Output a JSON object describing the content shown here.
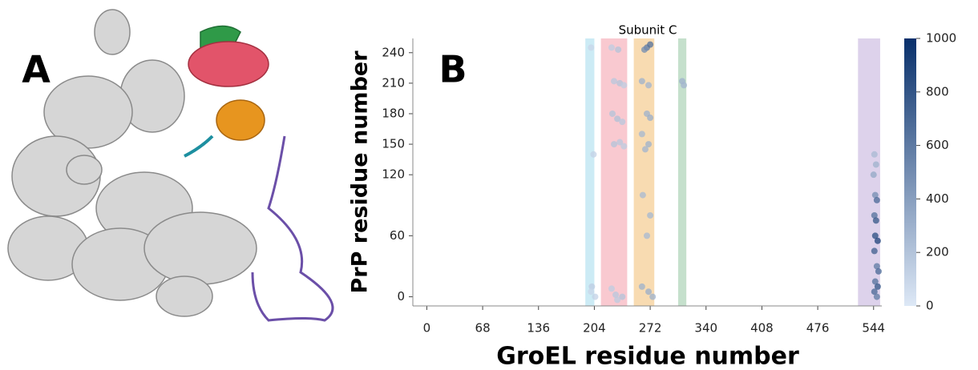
{
  "panel_labels": [
    "A",
    "B"
  ],
  "chart_data": {
    "type": "scatter",
    "title": "Subunit C",
    "x_label": "GroEL residue number",
    "y_label": "PrP residue number",
    "xlim": [
      -17,
      554
    ],
    "ylim": [
      -9,
      254
    ],
    "xticks": [
      0,
      68,
      136,
      204,
      272,
      340,
      408,
      476,
      544
    ],
    "yticks": [
      0,
      60,
      120,
      150,
      180,
      210,
      240
    ],
    "bands": [
      {
        "range": [
          193,
          204
        ],
        "color": "#bfe6f2"
      },
      {
        "range": [
          212,
          244
        ],
        "color": "#f8bcc4"
      },
      {
        "range": [
          252,
          277
        ],
        "color": "#f6d29e"
      },
      {
        "range": [
          306,
          316
        ],
        "color": "#b6d8bf"
      },
      {
        "range": [
          525,
          552
        ],
        "color": "#d5c7e6"
      }
    ],
    "colorbar": {
      "lim": [
        0,
        1000
      ],
      "ticks": [
        0,
        200,
        400,
        600,
        800,
        1000
      ],
      "colors": [
        "#dde8f6",
        "#08306b"
      ]
    },
    "points": {
      "x": [
        200,
        203,
        201,
        205,
        200,
        225,
        233,
        228,
        235,
        240,
        226,
        232,
        238,
        228,
        235,
        240,
        225,
        230,
        238,
        232,
        268,
        272,
        265,
        262,
        270,
        268,
        272,
        262,
        270,
        266,
        263,
        272,
        268,
        262,
        270,
        275,
        311,
        313,
        545,
        547,
        544,
        546,
        548,
        545,
        547,
        546,
        549,
        545,
        548,
        550,
        546,
        549,
        545,
        548
      ],
      "y": [
        245,
        140,
        10,
        0,
        5,
        245,
        243,
        212,
        210,
        208,
        180,
        175,
        172,
        150,
        152,
        148,
        8,
        2,
        0,
        -3,
        245,
        248,
        243,
        212,
        208,
        180,
        176,
        160,
        150,
        145,
        100,
        80,
        60,
        10,
        5,
        0,
        212,
        208,
        140,
        130,
        120,
        100,
        95,
        80,
        75,
        60,
        55,
        45,
        30,
        25,
        15,
        10,
        5,
        0
      ],
      "c": [
        100,
        120,
        150,
        120,
        100,
        150,
        200,
        180,
        200,
        150,
        200,
        220,
        180,
        200,
        180,
        160,
        150,
        180,
        200,
        160,
        600,
        650,
        500,
        300,
        280,
        300,
        320,
        260,
        300,
        280,
        250,
        260,
        250,
        300,
        320,
        300,
        300,
        280,
        250,
        300,
        350,
        500,
        700,
        650,
        800,
        850,
        900,
        750,
        600,
        700,
        650,
        800,
        700,
        600
      ]
    }
  }
}
